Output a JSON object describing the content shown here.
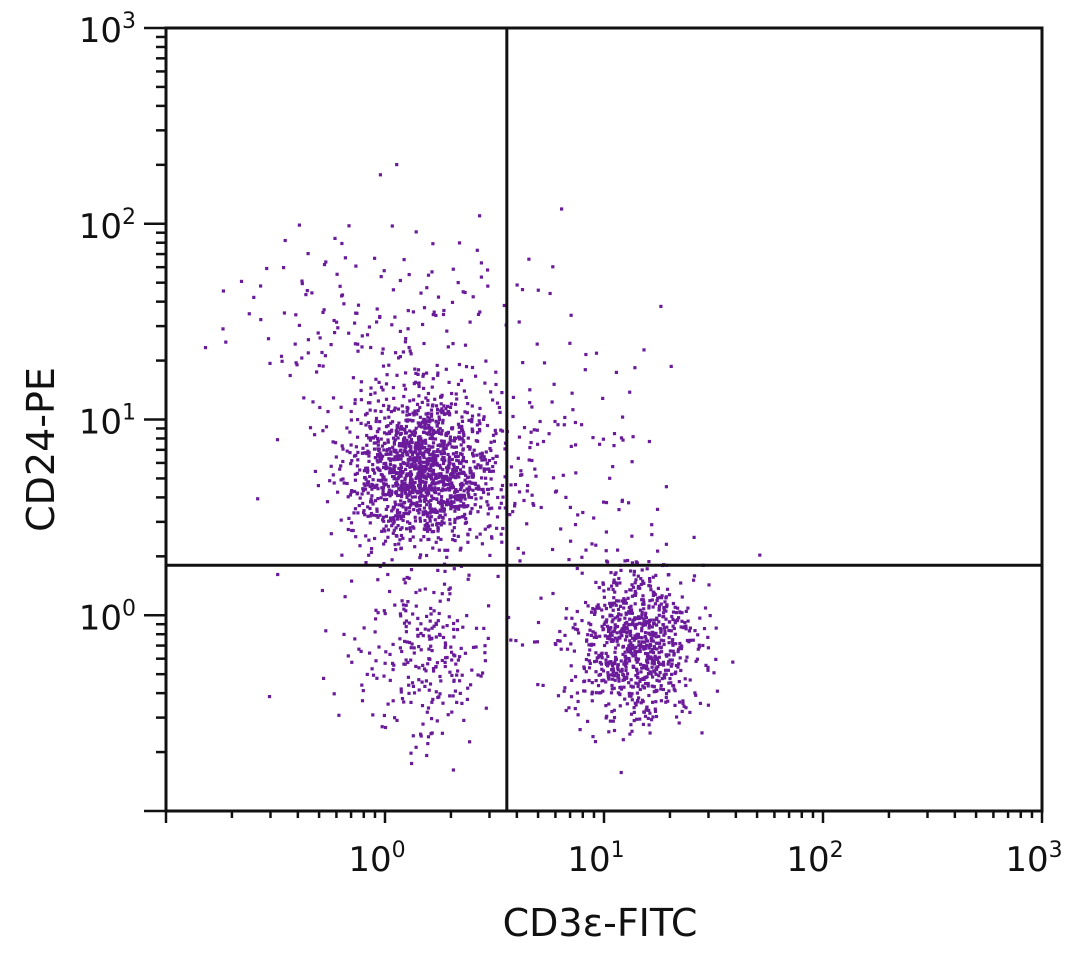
{
  "chart_data": {
    "type": "scatter",
    "title": "",
    "xlabel": "CD3ε-FITC",
    "ylabel": "CD24-PE",
    "x_scale": "log",
    "y_scale": "log",
    "xlim": [
      0.1,
      1000
    ],
    "ylim": [
      0.1,
      1000
    ],
    "x_ticks": [
      {
        "base": "10",
        "exp": "0",
        "value": 1
      },
      {
        "base": "10",
        "exp": "1",
        "value": 10
      },
      {
        "base": "10",
        "exp": "2",
        "value": 100
      },
      {
        "base": "10",
        "exp": "3",
        "value": 1000
      }
    ],
    "y_ticks": [
      {
        "base": "10",
        "exp": "0",
        "value": 1
      },
      {
        "base": "10",
        "exp": "1",
        "value": 10
      },
      {
        "base": "10",
        "exp": "2",
        "value": 100
      },
      {
        "base": "10",
        "exp": "3",
        "value": 1000
      }
    ],
    "grid": false,
    "point_color": "#6a1b9a",
    "quadrant_gates": {
      "x": 3.6,
      "y": 1.8
    },
    "populations": [
      {
        "center": [
          1.5,
          5.5
        ],
        "spread_log": [
          0.17,
          0.19
        ],
        "count": 1500
      },
      {
        "center": [
          1.5,
          0.6
        ],
        "spread_log": [
          0.17,
          0.22
        ],
        "count": 260
      },
      {
        "center": [
          14,
          0.7
        ],
        "spread_log": [
          0.14,
          0.2
        ],
        "count": 900
      },
      {
        "center": [
          1.0,
          30
        ],
        "spread_log": [
          0.35,
          0.3
        ],
        "count": 200
      },
      {
        "center": [
          6,
          6
        ],
        "spread_log": [
          0.25,
          0.35
        ],
        "count": 120
      }
    ]
  }
}
